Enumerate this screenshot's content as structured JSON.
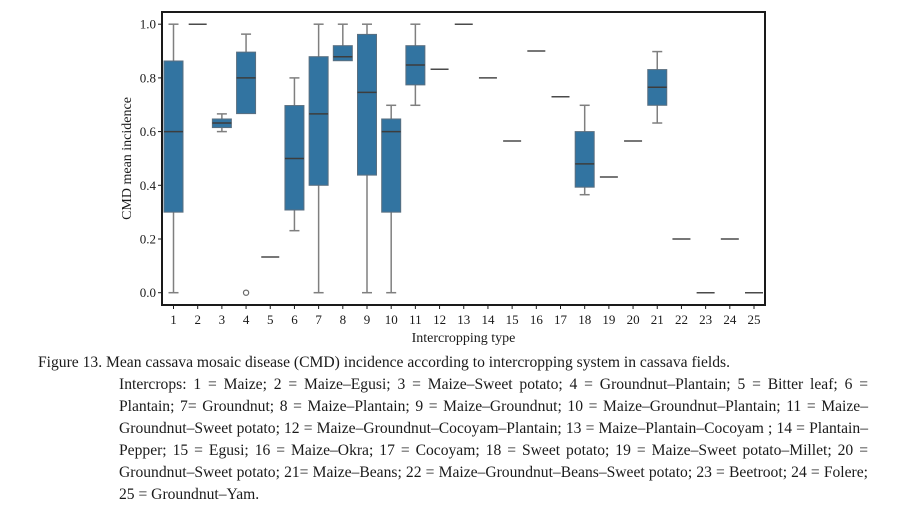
{
  "chart_data": {
    "type": "boxplot",
    "title": "",
    "xlabel": "Intercropping type",
    "ylabel": "CMD mean incidence",
    "ylim": [
      -0.05,
      1.05
    ],
    "yticks": [
      0.0,
      0.2,
      0.4,
      0.6,
      0.8,
      1.0
    ],
    "ytick_labels": [
      "0.0",
      "0.2",
      "0.4",
      "0.6",
      "0.8",
      "1.0"
    ],
    "categories": [
      "1",
      "2",
      "3",
      "4",
      "5",
      "6",
      "7",
      "8",
      "9",
      "10",
      "11",
      "12",
      "13",
      "14",
      "15",
      "16",
      "17",
      "18",
      "19",
      "20",
      "21",
      "22",
      "23",
      "24",
      "25"
    ],
    "grid": false,
    "box_color": "#3274a1",
    "series": [
      {
        "cat": "1",
        "whislo": 0.0,
        "q1": 0.3,
        "med": 0.6,
        "q3": 0.863,
        "whishi": 1.0,
        "fliers": []
      },
      {
        "cat": "2",
        "whislo": 1.0,
        "q1": 1.0,
        "med": 1.0,
        "q3": 1.0,
        "whishi": 1.0,
        "fliers": []
      },
      {
        "cat": "3",
        "whislo": 0.6,
        "q1": 0.615,
        "med": 0.632,
        "q3": 0.647,
        "whishi": 0.666,
        "fliers": []
      },
      {
        "cat": "4",
        "whislo": 0.667,
        "q1": 0.667,
        "med": 0.8,
        "q3": 0.896,
        "whishi": 0.963,
        "fliers": [
          0.0
        ]
      },
      {
        "cat": "5",
        "whislo": 0.133,
        "q1": 0.133,
        "med": 0.133,
        "q3": 0.133,
        "whishi": 0.133,
        "fliers": []
      },
      {
        "cat": "6",
        "whislo": 0.231,
        "q1": 0.308,
        "med": 0.5,
        "q3": 0.697,
        "whishi": 0.8,
        "fliers": []
      },
      {
        "cat": "7",
        "whislo": 0.0,
        "q1": 0.4,
        "med": 0.666,
        "q3": 0.879,
        "whishi": 1.0,
        "fliers": []
      },
      {
        "cat": "8",
        "whislo": 0.864,
        "q1": 0.864,
        "med": 0.879,
        "q3": 0.92,
        "whishi": 1.0,
        "fliers": []
      },
      {
        "cat": "9",
        "whislo": 0.0,
        "q1": 0.438,
        "med": 0.746,
        "q3": 0.962,
        "whishi": 1.0,
        "fliers": []
      },
      {
        "cat": "10",
        "whislo": 0.0,
        "q1": 0.3,
        "med": 0.6,
        "q3": 0.647,
        "whishi": 0.698,
        "fliers": []
      },
      {
        "cat": "11",
        "whislo": 0.698,
        "q1": 0.774,
        "med": 0.848,
        "q3": 0.92,
        "whishi": 1.0,
        "fliers": []
      },
      {
        "cat": "12",
        "whislo": 0.832,
        "q1": 0.832,
        "med": 0.832,
        "q3": 0.832,
        "whishi": 0.832,
        "fliers": []
      },
      {
        "cat": "13",
        "whislo": 1.0,
        "q1": 1.0,
        "med": 1.0,
        "q3": 1.0,
        "whishi": 1.0,
        "fliers": []
      },
      {
        "cat": "14",
        "whislo": 0.8,
        "q1": 0.8,
        "med": 0.8,
        "q3": 0.8,
        "whishi": 0.8,
        "fliers": []
      },
      {
        "cat": "15",
        "whislo": 0.565,
        "q1": 0.565,
        "med": 0.565,
        "q3": 0.565,
        "whishi": 0.565,
        "fliers": []
      },
      {
        "cat": "16",
        "whislo": 0.9,
        "q1": 0.9,
        "med": 0.9,
        "q3": 0.9,
        "whishi": 0.9,
        "fliers": []
      },
      {
        "cat": "17",
        "whislo": 0.73,
        "q1": 0.73,
        "med": 0.73,
        "q3": 0.73,
        "whishi": 0.73,
        "fliers": []
      },
      {
        "cat": "18",
        "whislo": 0.365,
        "q1": 0.393,
        "med": 0.48,
        "q3": 0.6,
        "whishi": 0.698,
        "fliers": []
      },
      {
        "cat": "19",
        "whislo": 0.431,
        "q1": 0.431,
        "med": 0.431,
        "q3": 0.431,
        "whishi": 0.431,
        "fliers": []
      },
      {
        "cat": "20",
        "whislo": 0.565,
        "q1": 0.565,
        "med": 0.565,
        "q3": 0.565,
        "whishi": 0.565,
        "fliers": []
      },
      {
        "cat": "21",
        "whislo": 0.632,
        "q1": 0.698,
        "med": 0.765,
        "q3": 0.831,
        "whishi": 0.898,
        "fliers": []
      },
      {
        "cat": "22",
        "whislo": 0.2,
        "q1": 0.2,
        "med": 0.2,
        "q3": 0.2,
        "whishi": 0.2,
        "fliers": []
      },
      {
        "cat": "23",
        "whislo": 0.0,
        "q1": 0.0,
        "med": 0.0,
        "q3": 0.0,
        "whishi": 0.0,
        "fliers": []
      },
      {
        "cat": "24",
        "whislo": 0.2,
        "q1": 0.2,
        "med": 0.2,
        "q3": 0.2,
        "whishi": 0.2,
        "fliers": []
      },
      {
        "cat": "25",
        "whislo": 0.0,
        "q1": 0.0,
        "med": 0.0,
        "q3": 0.0,
        "whishi": 0.0,
        "fliers": []
      }
    ]
  },
  "caption": {
    "head": "Figure 13. Mean cassava mosaic disease (CMD) incidence according to intercropping system in cassava fields.",
    "body": "Intercrops: 1 = Maize; 2 = Maize–Egusi; 3 = Maize–Sweet potato; 4 = Groundnut–Plantain; 5 = Bitter leaf; 6 = Plantain; 7= Groundnut; 8 = Maize–Plantain; 9 = Maize–Groundnut; 10 = Maize–Groundnut–Plantain; 11 = Maize–Groundnut–Sweet potato; 12 = Maize–Groundnut–Cocoyam–Plantain; 13 = Maize–Plantain–Cocoyam ; 14 = Plantain–Pepper; 15 = Egusi; 16 = Maize–Okra; 17 = Cocoyam; 18 = Sweet potato; 19 = Maize–Sweet potato–Millet; 20 = Groundnut–Sweet potato; 21= Maize–Beans; 22 = Maize–Groundnut–Beans–Sweet potato; 23 = Beetroot; 24 = Folere; 25 = Groundnut–Yam."
  }
}
